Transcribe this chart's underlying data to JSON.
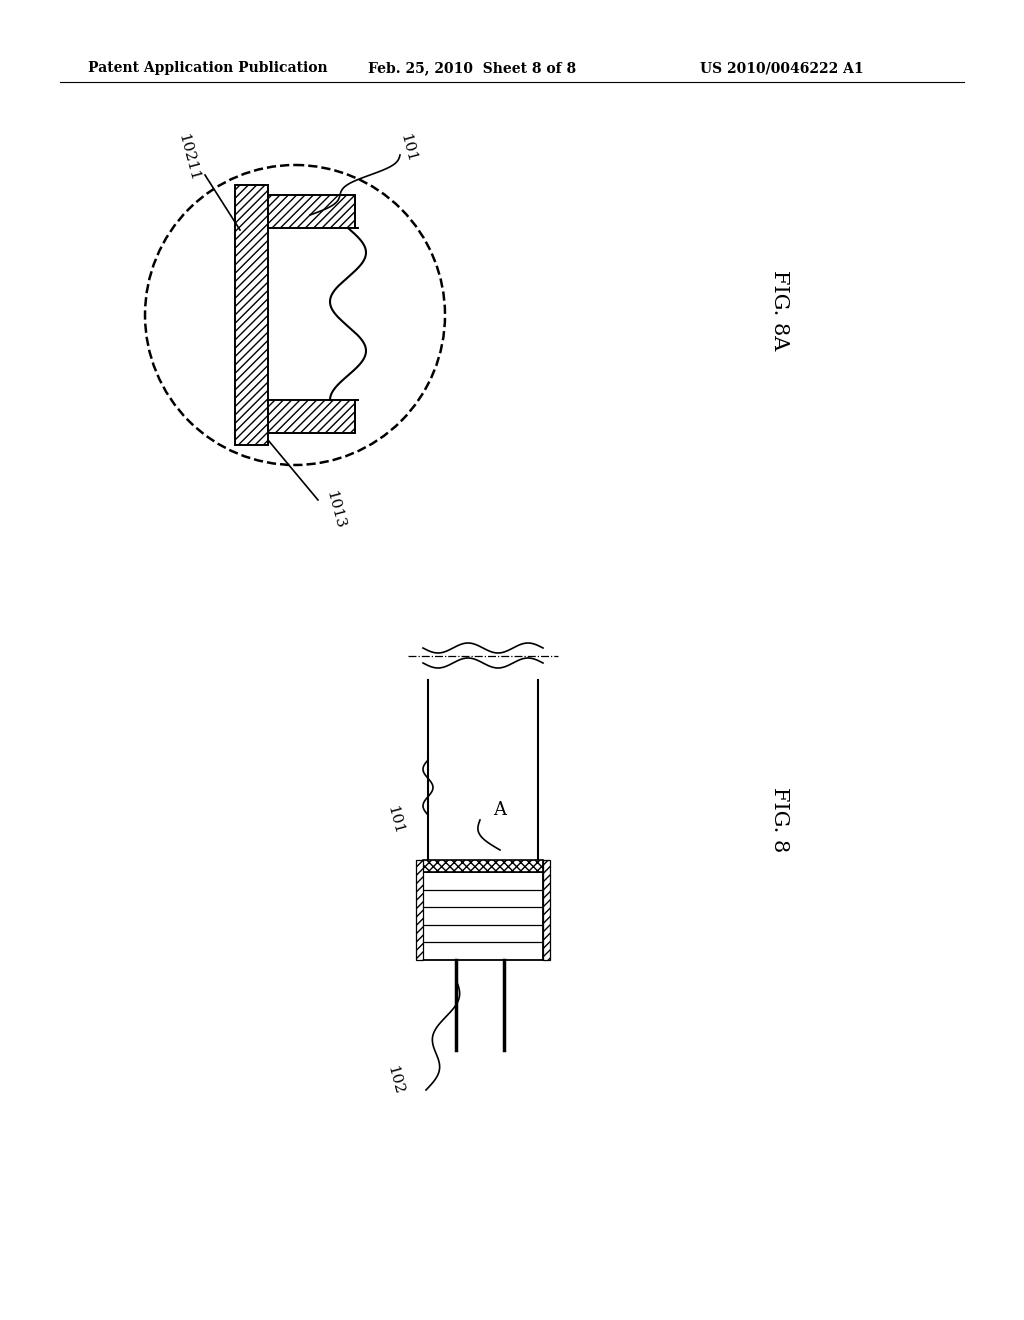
{
  "bg_color": "#ffffff",
  "line_color": "#000000",
  "header_text": "Patent Application Publication",
  "header_date": "Feb. 25, 2010  Sheet 8 of 8",
  "header_patent": "US 2010/0046222 A1",
  "fig8a_label": "FIG. 8A",
  "fig8_label": "FIG. 8",
  "label_101_fig8a": "101",
  "label_10211": "10211",
  "label_1013": "1013",
  "label_101_fig8": "101",
  "label_A": "A",
  "label_102": "102"
}
